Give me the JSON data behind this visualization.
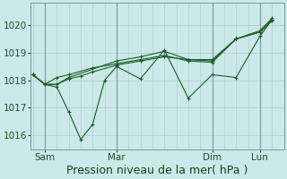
{
  "background_color": "#cce8e8",
  "plot_bg_color": "#cce8e8",
  "grid_color": "#aacccc",
  "line_color": "#1a5c28",
  "ylim": [
    1015.5,
    1020.8
  ],
  "yticks": [
    1016,
    1017,
    1018,
    1019,
    1020
  ],
  "xlabel": "Pression niveau de la mer( hPa )",
  "xlabel_fontsize": 9,
  "tick_fontsize": 7.5,
  "x_tick_labels": [
    "Sam",
    "Mar",
    "Dim",
    "Lun"
  ],
  "x_tick_positions": [
    0.5,
    3.5,
    7.5,
    9.5
  ],
  "xlim": [
    -0.1,
    10.5
  ],
  "series": {
    "x1": [
      0,
      0.5,
      1.0,
      1.5,
      2.0,
      2.5,
      3.5,
      4.5,
      5.5,
      6.5,
      7.5,
      8.5,
      9.5,
      10.0
    ],
    "y1": [
      1018.2,
      1017.85,
      1017.85,
      1018.05,
      1018.15,
      1018.3,
      1018.55,
      1018.7,
      1018.85,
      1018.75,
      1018.75,
      1019.5,
      1019.8,
      1020.25
    ],
    "x2": [
      0,
      0.5,
      1.0,
      1.5,
      2.0,
      2.5,
      3.0,
      3.5,
      4.5,
      5.5,
      6.5,
      7.5,
      8.5,
      9.5,
      10.0
    ],
    "y2": [
      1018.2,
      1017.85,
      1017.75,
      1016.85,
      1015.85,
      1016.4,
      1018.0,
      1018.5,
      1018.05,
      1019.1,
      1017.35,
      1018.2,
      1018.1,
      1019.6,
      1020.2
    ],
    "x3": [
      0,
      0.5,
      1.0,
      1.5,
      3.5,
      4.5,
      5.5,
      6.5,
      7.5,
      8.5,
      9.5,
      10.0
    ],
    "y3": [
      1018.2,
      1017.85,
      1017.85,
      1018.1,
      1018.7,
      1018.85,
      1019.05,
      1018.75,
      1018.7,
      1019.5,
      1019.75,
      1020.2
    ],
    "x4": [
      0,
      0.5,
      1.0,
      1.5,
      2.5,
      3.5,
      4.5,
      5.5,
      6.5,
      7.5,
      8.5,
      9.5,
      10.0
    ],
    "y4": [
      1018.2,
      1017.85,
      1018.1,
      1018.2,
      1018.45,
      1018.6,
      1018.75,
      1018.9,
      1018.7,
      1018.65,
      1019.5,
      1019.75,
      1020.15
    ]
  },
  "minor_xtick_positions": [
    0,
    0.5,
    1.0,
    1.5,
    2.0,
    2.5,
    3.0,
    3.5,
    4.0,
    4.5,
    5.0,
    5.5,
    6.0,
    6.5,
    7.0,
    7.5,
    8.0,
    8.5,
    9.0,
    9.5,
    10.0
  ]
}
